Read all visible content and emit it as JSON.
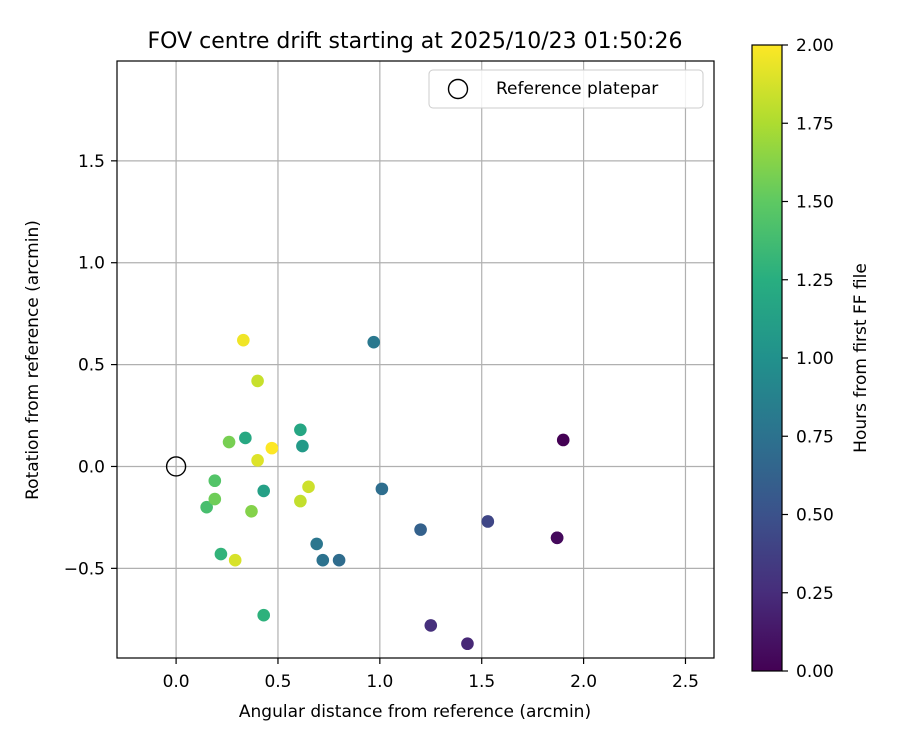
{
  "chart_data": {
    "type": "scatter",
    "title": "FOV centre drift starting at 2025/10/23 01:50:26",
    "xlabel": "Angular distance from reference (arcmin)",
    "ylabel": "Rotation from reference (arcmin)",
    "xlim": [
      -0.29,
      2.64
    ],
    "ylim": [
      -0.94,
      1.99
    ],
    "xticks": [
      0.0,
      0.5,
      1.0,
      1.5,
      2.0,
      2.5
    ],
    "yticks": [
      -0.5,
      0.0,
      0.5,
      1.0,
      1.5
    ],
    "xtick_labels": [
      "0.0",
      "0.5",
      "1.0",
      "1.5",
      "2.0",
      "2.5"
    ],
    "ytick_labels": [
      "−0.5",
      "0.0",
      "0.5",
      "1.0",
      "1.5"
    ],
    "grid": true,
    "legend": {
      "position": "top-right",
      "entries": [
        {
          "label": "Reference platepar",
          "marker": "open-circle"
        }
      ]
    },
    "reference_point": {
      "x": 0.0,
      "y": 0.0
    },
    "colorbar": {
      "label": "Hours from first FF file",
      "range": [
        0.0,
        2.0
      ],
      "ticks": [
        0.0,
        0.25,
        0.5,
        0.75,
        1.0,
        1.25,
        1.5,
        1.75,
        2.0
      ],
      "tick_labels": [
        "0.00",
        "0.25",
        "0.50",
        "0.75",
        "1.00",
        "1.25",
        "1.50",
        "1.75",
        "2.00"
      ],
      "colormap": "viridis"
    },
    "points": [
      {
        "x": 1.9,
        "y": 0.13,
        "c": 0.0
      },
      {
        "x": 1.87,
        "y": -0.35,
        "c": 0.02
      },
      {
        "x": 1.87,
        "y": -0.35,
        "c": 0.05
      },
      {
        "x": 1.43,
        "y": -0.87,
        "c": 0.22
      },
      {
        "x": 1.25,
        "y": -0.78,
        "c": 0.27
      },
      {
        "x": 1.53,
        "y": -0.27,
        "c": 0.42
      },
      {
        "x": 1.2,
        "y": -0.31,
        "c": 0.62
      },
      {
        "x": 1.01,
        "y": -0.11,
        "c": 0.72
      },
      {
        "x": 0.8,
        "y": -0.46,
        "c": 0.7
      },
      {
        "x": 0.72,
        "y": -0.46,
        "c": 0.75
      },
      {
        "x": 0.69,
        "y": -0.38,
        "c": 0.78
      },
      {
        "x": 0.97,
        "y": 0.61,
        "c": 0.8
      },
      {
        "x": 0.62,
        "y": 0.1,
        "c": 1.08
      },
      {
        "x": 0.61,
        "y": 0.18,
        "c": 1.18
      },
      {
        "x": 0.43,
        "y": -0.12,
        "c": 1.13
      },
      {
        "x": 0.34,
        "y": 0.14,
        "c": 1.2
      },
      {
        "x": 0.43,
        "y": -0.73,
        "c": 1.28
      },
      {
        "x": 0.22,
        "y": -0.43,
        "c": 1.3
      },
      {
        "x": 0.15,
        "y": -0.2,
        "c": 1.4
      },
      {
        "x": 0.19,
        "y": -0.07,
        "c": 1.45
      },
      {
        "x": 0.19,
        "y": -0.16,
        "c": 1.55
      },
      {
        "x": 0.26,
        "y": 0.12,
        "c": 1.58
      },
      {
        "x": 0.37,
        "y": -0.22,
        "c": 1.62
      },
      {
        "x": 0.61,
        "y": -0.17,
        "c": 1.82
      },
      {
        "x": 0.65,
        "y": -0.1,
        "c": 1.85
      },
      {
        "x": 0.4,
        "y": 0.42,
        "c": 1.83
      },
      {
        "x": 0.29,
        "y": -0.46,
        "c": 1.88
      },
      {
        "x": 0.4,
        "y": 0.03,
        "c": 1.9
      },
      {
        "x": 0.33,
        "y": 0.62,
        "c": 1.96
      },
      {
        "x": 0.47,
        "y": 0.09,
        "c": 2.0
      }
    ]
  }
}
